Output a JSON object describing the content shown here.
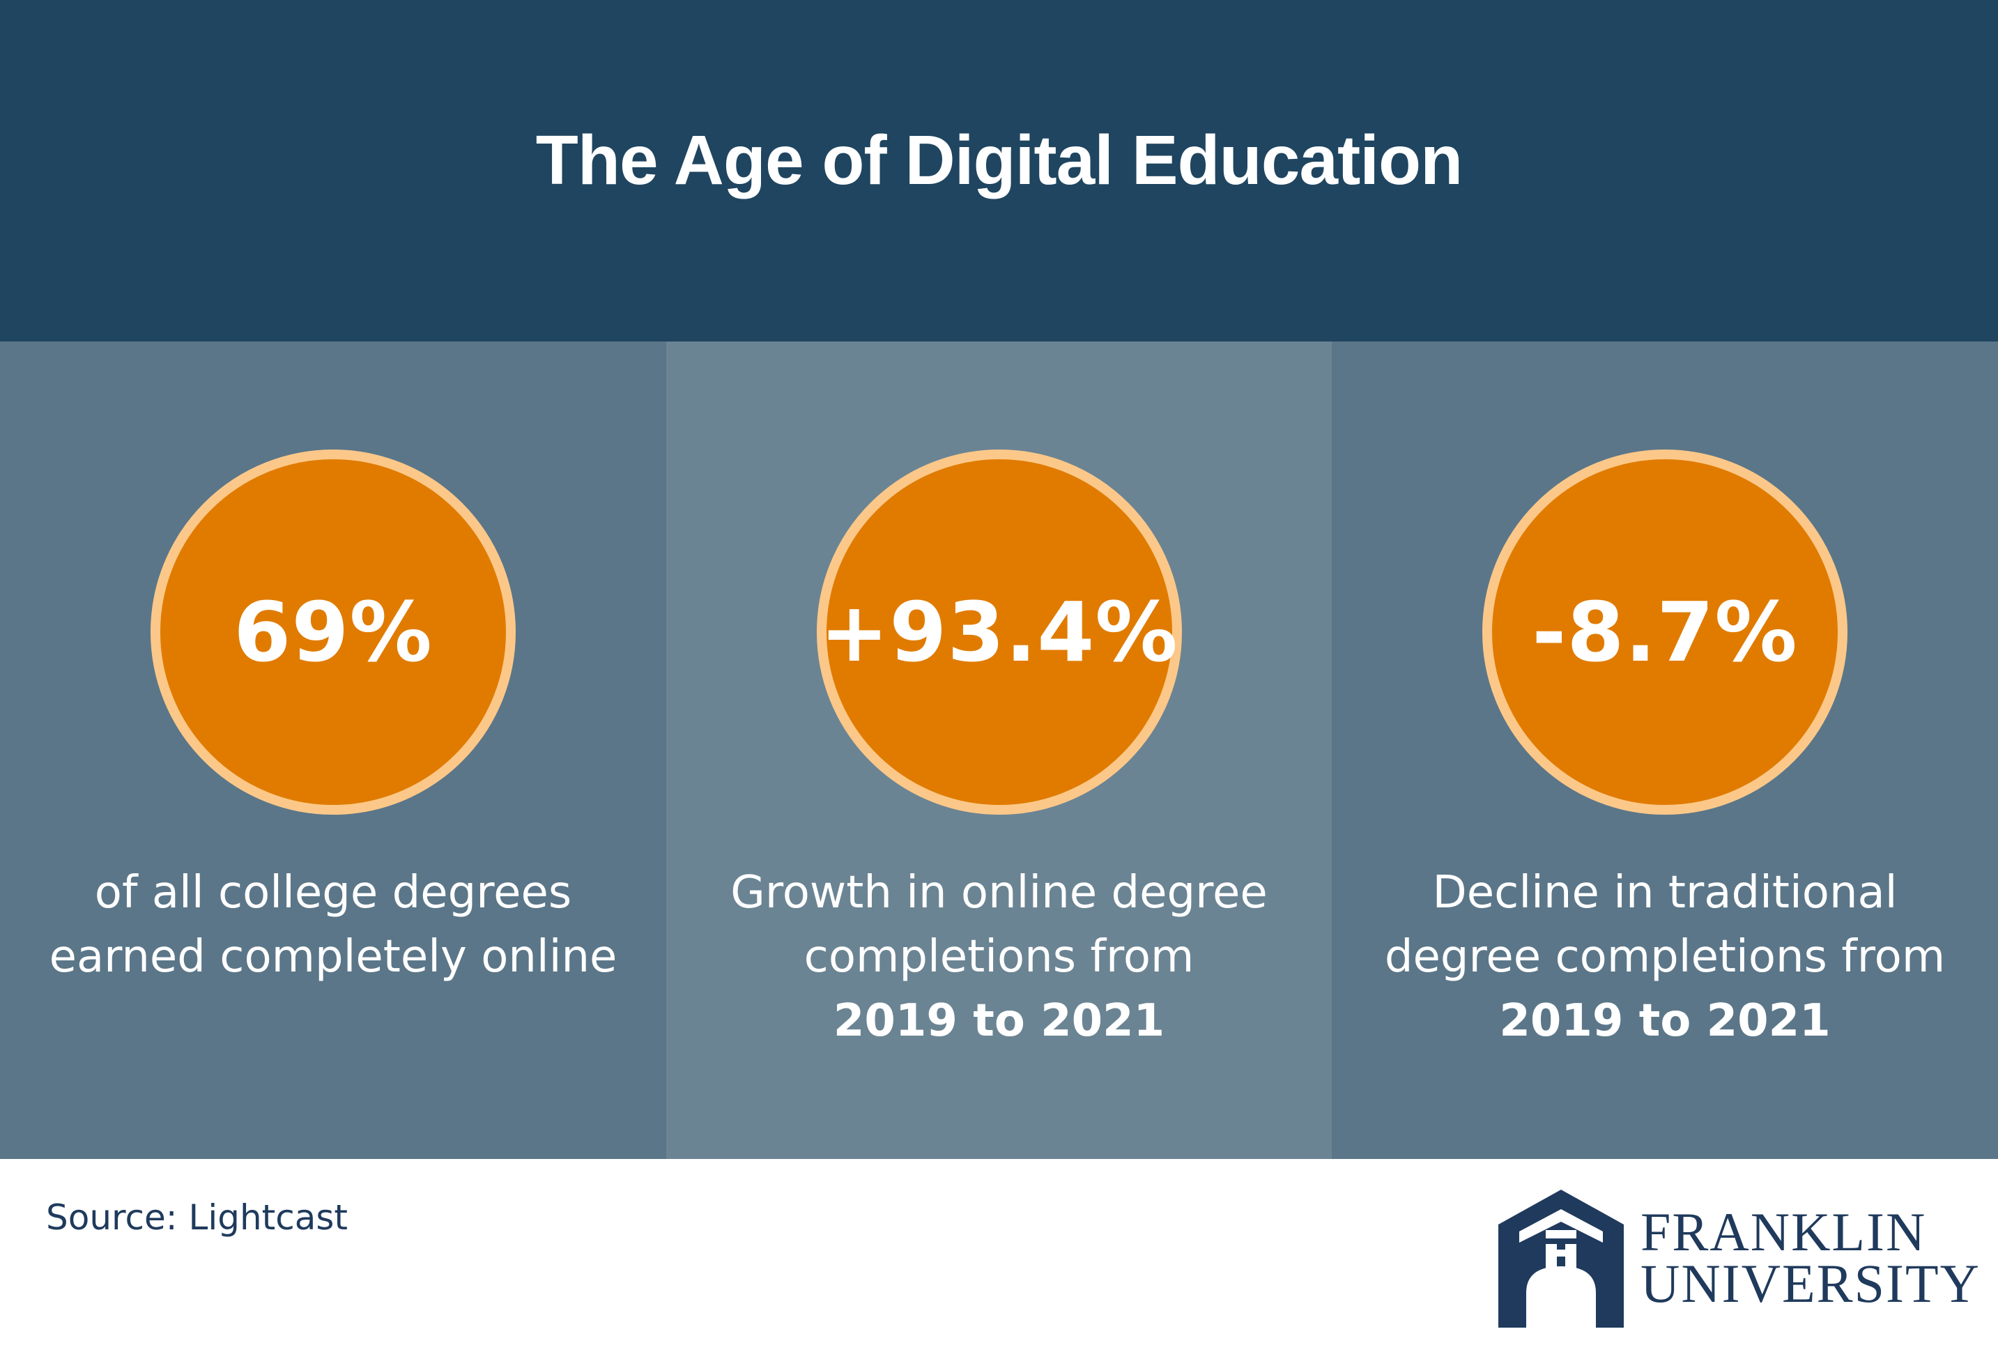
{
  "header": {
    "title": "The Age of Digital Education"
  },
  "stats": [
    {
      "value": "69%",
      "caption_lines": [
        "of all college degrees",
        "earned completely online"
      ],
      "caption_bold": ""
    },
    {
      "value": "+93.4%",
      "caption_lines": [
        "Growth in online degree",
        "completions from"
      ],
      "caption_bold": "2019 to 2021"
    },
    {
      "value": "-8.7%",
      "caption_lines": [
        "Decline in traditional",
        "degree completions from"
      ],
      "caption_bold": "2019 to 2021"
    }
  ],
  "footer": {
    "source": "Source: Lightcast",
    "logo_line1": "FRANKLIN",
    "logo_line2": "UNIVERSITY"
  },
  "colors": {
    "header_bg": "#1f4560",
    "panel_dark": "#5b7688",
    "panel_light": "#6b8493",
    "circle_fill": "#e07b00",
    "circle_ring": "#fcc889",
    "brand_navy": "#1f3a5c"
  },
  "icons": {
    "logo": "franklin-arch-logo-icon"
  }
}
